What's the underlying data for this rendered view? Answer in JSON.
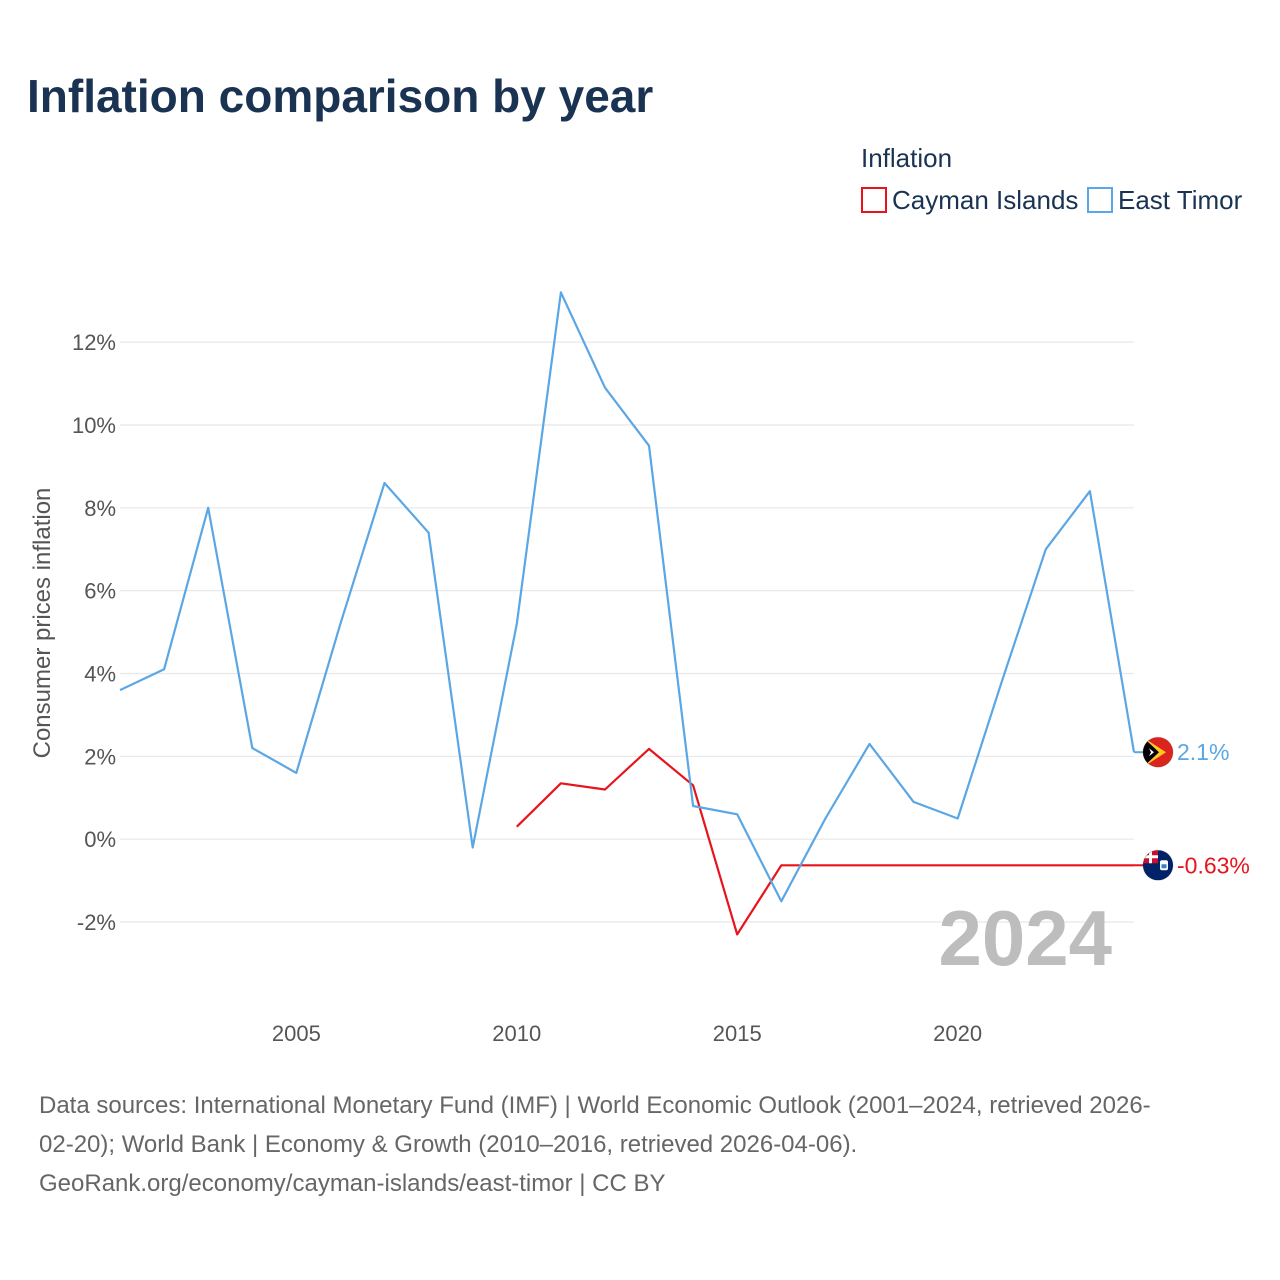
{
  "chart_data": {
    "type": "line",
    "title": "Inflation comparison by year",
    "legend": {
      "title": "Inflation",
      "placement": "top-right"
    },
    "xlabel": "",
    "ylabel": "Consumer prices inflation",
    "xlim": [
      2001,
      2024
    ],
    "ylim": [
      -3.4,
      13.5
    ],
    "xticks": [
      2005,
      2010,
      2015,
      2020
    ],
    "xtick_labels": [
      "2005",
      "2010",
      "2015",
      "2020"
    ],
    "yticks": [
      -2,
      0,
      2,
      4,
      6,
      8,
      10,
      12
    ],
    "ytick_labels": [
      "-2%",
      "0%",
      "2%",
      "4%",
      "6%",
      "8%",
      "10%",
      "12%"
    ],
    "grid": true,
    "current_year": "2024",
    "series": [
      {
        "name": "Cayman Islands",
        "color": "#e8141c",
        "flag": "cayman-islands-flag",
        "end_label": "-0.63%",
        "points": [
          [
            2010,
            0.3
          ],
          [
            2011,
            1.35
          ],
          [
            2012,
            1.2
          ],
          [
            2013,
            2.18
          ],
          [
            2014,
            1.3
          ],
          [
            2015,
            -2.3
          ],
          [
            2016,
            -0.63
          ],
          [
            2017,
            -0.63
          ],
          [
            2018,
            -0.63
          ],
          [
            2019,
            -0.63
          ],
          [
            2020,
            -0.63
          ],
          [
            2021,
            -0.63
          ],
          [
            2022,
            -0.63
          ],
          [
            2023,
            -0.63
          ],
          [
            2024,
            -0.63
          ]
        ]
      },
      {
        "name": "East Timor",
        "color": "#5ba6e4",
        "flag": "east-timor-flag",
        "end_label": "2.1%",
        "points": [
          [
            2001,
            3.6
          ],
          [
            2002,
            4.1
          ],
          [
            2003,
            8.0
          ],
          [
            2004,
            2.2
          ],
          [
            2005,
            1.6
          ],
          [
            2006,
            5.2
          ],
          [
            2007,
            8.6
          ],
          [
            2008,
            7.4
          ],
          [
            2009,
            -0.2
          ],
          [
            2010,
            5.2
          ],
          [
            2011,
            13.2
          ],
          [
            2012,
            10.9
          ],
          [
            2013,
            9.5
          ],
          [
            2014,
            0.8
          ],
          [
            2015,
            0.6
          ],
          [
            2016,
            -1.5
          ],
          [
            2017,
            0.5
          ],
          [
            2018,
            2.3
          ],
          [
            2019,
            0.9
          ],
          [
            2020,
            0.5
          ],
          [
            2021,
            3.8
          ],
          [
            2022,
            7.0
          ],
          [
            2023,
            8.4
          ],
          [
            2024,
            2.1
          ]
        ]
      }
    ]
  },
  "footer": {
    "line1": "Data sources: International Monetary Fund (IMF) | World Economic Outlook (2001–2024, retrieved 2026-",
    "line2": "02-20); World Bank | Economy & Growth (2010–2016, retrieved 2026-04-06).",
    "line3": "GeoRank.org/economy/cayman-islands/east-timor | CC BY"
  }
}
